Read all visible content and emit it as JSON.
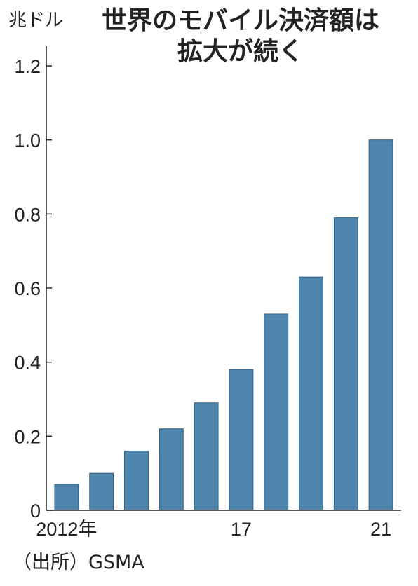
{
  "unit_label": "兆ドル",
  "title_lines": [
    "世界のモバイル決済額は",
    "拡大が続く"
  ],
  "source": "（出所）GSMA",
  "colors": {
    "bar": "#4f86ad",
    "axis": "#222222"
  },
  "chart_data": {
    "type": "bar",
    "title": "世界のモバイル決済額は拡大が続く",
    "xlabel": "",
    "ylabel": "兆ドル",
    "categories": [
      "2012年",
      "",
      "",
      "",
      "",
      "17",
      "",
      "",
      "",
      "21"
    ],
    "values": [
      0.07,
      0.1,
      0.16,
      0.22,
      0.29,
      0.38,
      0.53,
      0.63,
      0.79,
      1.0
    ],
    "ylim": [
      0,
      1.2
    ],
    "yticks": [
      "0",
      "0.2",
      "0.4",
      "0.6",
      "0.8",
      "1.0",
      "1.2"
    ],
    "grid": false,
    "legend": "none"
  }
}
